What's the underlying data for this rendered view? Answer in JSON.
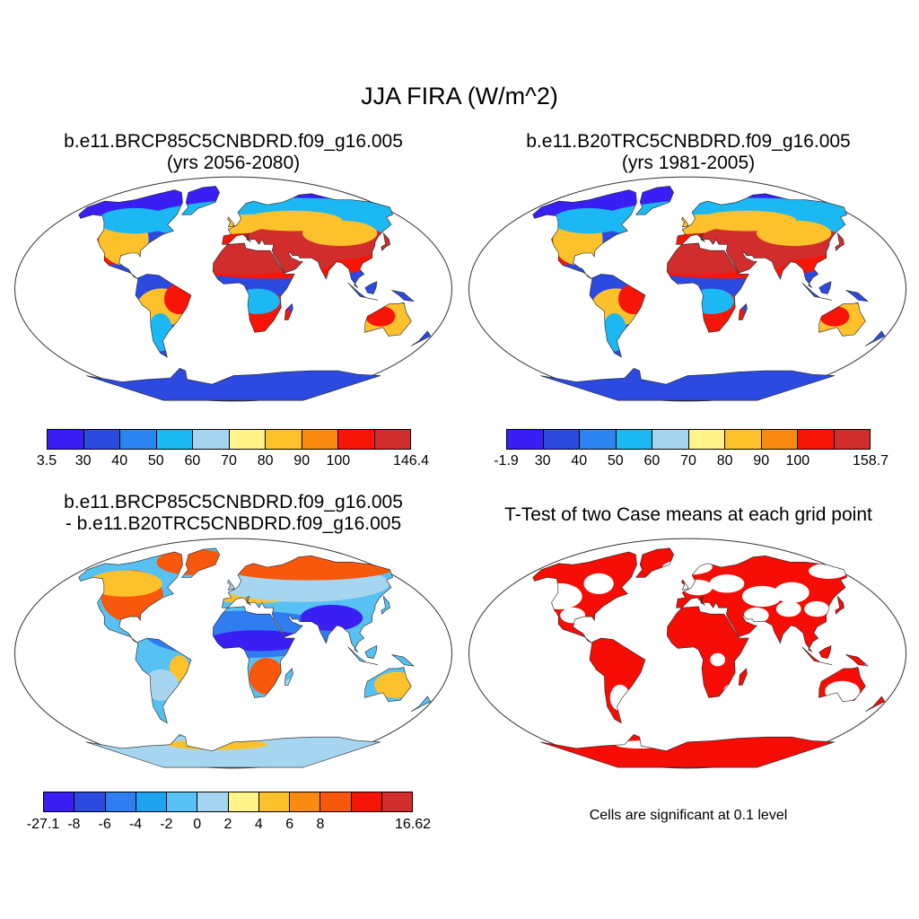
{
  "figure": {
    "title": "JJA FIRA (W/m^2)"
  },
  "panels": [
    {
      "id": "future",
      "title_line1": "b.e11.BRCP85C5CNBDRD.f09_g16.005",
      "title_line2": "(yrs 2056-2080)",
      "map_style": "absolute",
      "colorbar": {
        "colors": [
          "#3a1ff5",
          "#2c4ae0",
          "#2b84ef",
          "#1cb8f4",
          "#a6d5ef",
          "#fff38a",
          "#fdc22b",
          "#fb8a11",
          "#f61506",
          "#d12d2d"
        ],
        "labels": [
          "3.5",
          "30",
          "40",
          "50",
          "60",
          "70",
          "80",
          "90",
          "100",
          "146.4"
        ]
      }
    },
    {
      "id": "historical",
      "title_line1": "b.e11.B20TRC5CNBDRD.f09_g16.005",
      "title_line2": "(yrs 1981-2005)",
      "map_style": "absolute",
      "colorbar": {
        "colors": [
          "#3a1ff5",
          "#2c4ae0",
          "#2b84ef",
          "#1cb8f4",
          "#a6d5ef",
          "#fff38a",
          "#fdc22b",
          "#fb8a11",
          "#f61506",
          "#d12d2d"
        ],
        "labels": [
          "-1.9",
          "30",
          "40",
          "50",
          "60",
          "70",
          "80",
          "90",
          "100",
          "158.7"
        ]
      }
    },
    {
      "id": "difference",
      "title_line1": "b.e11.BRCP85C5CNBDRD.f09_g16.005",
      "title_line2": "- b.e11.B20TRC5CNBDRD.f09_g16.005",
      "map_style": "difference",
      "colorbar": {
        "colors": [
          "#3a1ff5",
          "#2c4ae0",
          "#2f7df0",
          "#1ea3f0",
          "#56c1f2",
          "#a6d5ef",
          "#fff38a",
          "#fdc22b",
          "#fb8a11",
          "#f8580c",
          "#f61506",
          "#d12d2d"
        ],
        "labels": [
          "-27.1",
          "-8",
          "-6",
          "-4",
          "-2",
          "0",
          "2",
          "4",
          "6",
          "8",
          "16.62"
        ]
      }
    },
    {
      "id": "ttest",
      "title_line1": "T-Test of two Case means at each grid point",
      "title_line2": "",
      "map_style": "significance",
      "note": "Cells are significant at 0.1 level"
    }
  ]
}
